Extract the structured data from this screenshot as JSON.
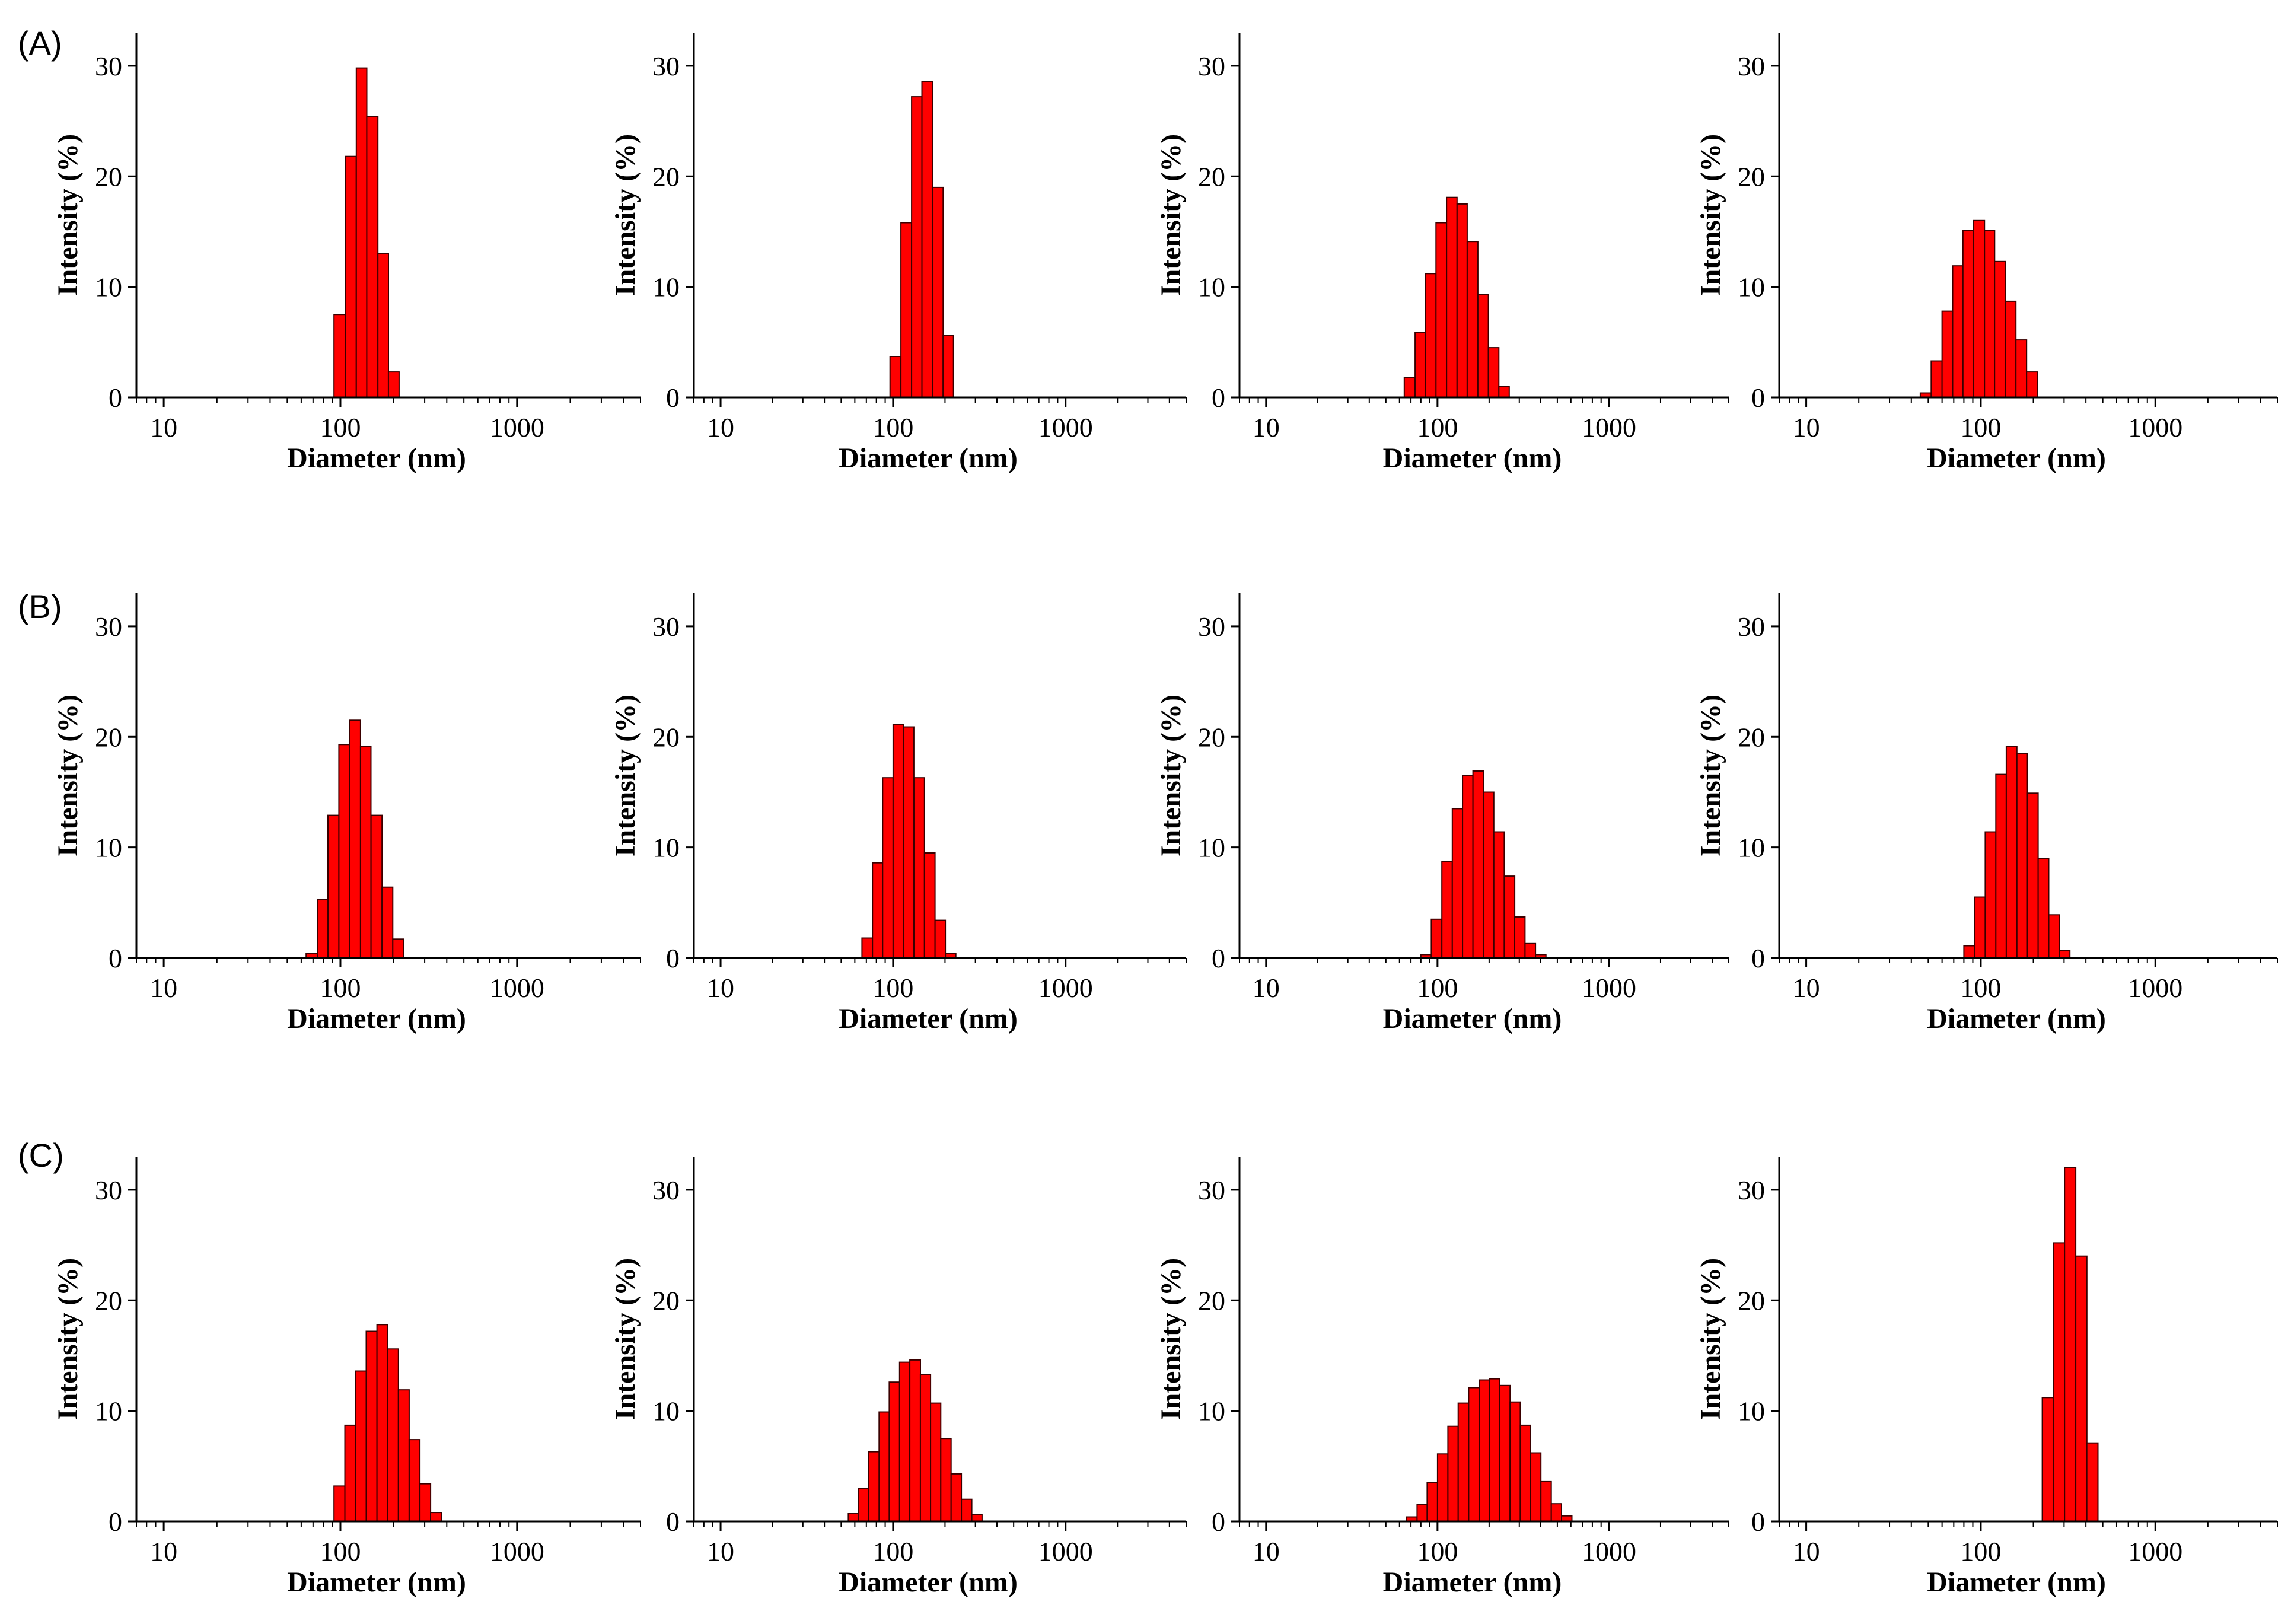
{
  "row_labels": [
    "(A)",
    "(B)",
    "(C)"
  ],
  "colors": {
    "bar_fill": "#ff0000",
    "bar_stroke": "#3a0000",
    "axis": "#000000"
  },
  "chart_data": [
    {
      "type": "bar",
      "row": "(A)",
      "xlabel": "Diameter (nm)",
      "ylabel": "Intensity (%)",
      "xscale": "log",
      "xlim": [
        7,
        5000
      ],
      "ylim": [
        0,
        33
      ],
      "xticks": [
        10,
        100,
        1000
      ],
      "yticks": [
        0,
        10,
        20,
        30
      ],
      "bins": [
        [
          92,
          107,
          7.5
        ],
        [
          107,
          123,
          21.8
        ],
        [
          123,
          141,
          29.8
        ],
        [
          141,
          163,
          25.4
        ],
        [
          163,
          187,
          13.0
        ],
        [
          187,
          215,
          2.3
        ]
      ]
    },
    {
      "type": "bar",
      "row": "(A)",
      "xlabel": "Diameter (nm)",
      "ylabel": "Intensity (%)",
      "xscale": "log",
      "xlim": [
        7,
        5000
      ],
      "ylim": [
        0,
        33
      ],
      "xticks": [
        10,
        100,
        1000
      ],
      "yticks": [
        0,
        10,
        20,
        30
      ],
      "bins": [
        [
          96,
          111,
          3.7
        ],
        [
          111,
          128,
          15.8
        ],
        [
          128,
          147,
          27.2
        ],
        [
          147,
          169,
          28.6
        ],
        [
          169,
          195,
          19.0
        ],
        [
          195,
          224,
          5.6
        ]
      ]
    },
    {
      "type": "bar",
      "row": "(A)",
      "xlabel": "Diameter (nm)",
      "ylabel": "Intensity (%)",
      "xscale": "log",
      "xlim": [
        7,
        5000
      ],
      "ylim": [
        0,
        33
      ],
      "xticks": [
        10,
        100,
        1000
      ],
      "yticks": [
        0,
        10,
        20,
        30
      ],
      "bins": [
        [
          64,
          74,
          1.8
        ],
        [
          74,
          85,
          5.9
        ],
        [
          85,
          98,
          11.2
        ],
        [
          98,
          113,
          15.8
        ],
        [
          113,
          130,
          18.1
        ],
        [
          130,
          149,
          17.5
        ],
        [
          149,
          172,
          14.1
        ],
        [
          172,
          198,
          9.3
        ],
        [
          198,
          228,
          4.5
        ],
        [
          228,
          262,
          1.0
        ]
      ]
    },
    {
      "type": "bar",
      "row": "(A)",
      "xlabel": "Diameter (nm)",
      "ylabel": "Intensity (%)",
      "xscale": "log",
      "xlim": [
        7,
        5000
      ],
      "ylim": [
        0,
        33
      ],
      "xticks": [
        10,
        100,
        1000
      ],
      "yticks": [
        0,
        10,
        20,
        30
      ],
      "bins": [
        [
          45,
          52,
          0.4
        ],
        [
          52,
          60,
          3.3
        ],
        [
          60,
          69,
          7.8
        ],
        [
          69,
          79,
          11.9
        ],
        [
          79,
          91,
          15.1
        ],
        [
          91,
          105,
          16.0
        ],
        [
          105,
          120,
          15.1
        ],
        [
          120,
          138,
          12.3
        ],
        [
          138,
          159,
          8.7
        ],
        [
          159,
          183,
          5.2
        ],
        [
          183,
          211,
          2.3
        ]
      ]
    },
    {
      "type": "bar",
      "row": "(B)",
      "xlabel": "Diameter (nm)",
      "ylabel": "Intensity (%)",
      "xscale": "log",
      "xlim": [
        7,
        5000
      ],
      "ylim": [
        0,
        33
      ],
      "xticks": [
        10,
        100,
        1000
      ],
      "yticks": [
        0,
        10,
        20,
        30
      ],
      "bins": [
        [
          64,
          74,
          0.4
        ],
        [
          74,
          85,
          5.3
        ],
        [
          85,
          98,
          12.9
        ],
        [
          98,
          113,
          19.3
        ],
        [
          113,
          130,
          21.5
        ],
        [
          130,
          149,
          19.1
        ],
        [
          149,
          172,
          12.9
        ],
        [
          172,
          198,
          6.4
        ],
        [
          198,
          228,
          1.7
        ]
      ]
    },
    {
      "type": "bar",
      "row": "(B)",
      "xlabel": "Diameter (nm)",
      "ylabel": "Intensity (%)",
      "xscale": "log",
      "xlim": [
        7,
        5000
      ],
      "ylim": [
        0,
        33
      ],
      "xticks": [
        10,
        100,
        1000
      ],
      "yticks": [
        0,
        10,
        20,
        30
      ],
      "bins": [
        [
          66,
          76,
          1.8
        ],
        [
          76,
          87,
          8.6
        ],
        [
          87,
          100,
          16.3
        ],
        [
          100,
          115,
          21.1
        ],
        [
          115,
          132,
          20.9
        ],
        [
          132,
          152,
          16.3
        ],
        [
          152,
          175,
          9.5
        ],
        [
          175,
          201,
          3.4
        ],
        [
          201,
          231,
          0.4
        ]
      ]
    },
    {
      "type": "bar",
      "row": "(B)",
      "xlabel": "Diameter (nm)",
      "ylabel": "Intensity (%)",
      "xscale": "log",
      "xlim": [
        7,
        5000
      ],
      "ylim": [
        0,
        33
      ],
      "xticks": [
        10,
        100,
        1000
      ],
      "yticks": [
        0,
        10,
        20,
        30
      ],
      "bins": [
        [
          80,
          92,
          0.3
        ],
        [
          92,
          106,
          3.5
        ],
        [
          106,
          122,
          8.7
        ],
        [
          122,
          140,
          13.5
        ],
        [
          140,
          161,
          16.5
        ],
        [
          161,
          185,
          16.9
        ],
        [
          185,
          213,
          15.0
        ],
        [
          213,
          245,
          11.4
        ],
        [
          245,
          282,
          7.4
        ],
        [
          282,
          324,
          3.7
        ],
        [
          324,
          373,
          1.3
        ],
        [
          373,
          429,
          0.3
        ]
      ]
    },
    {
      "type": "bar",
      "row": "(B)",
      "xlabel": "Diameter (nm)",
      "ylabel": "Intensity (%)",
      "xscale": "log",
      "xlim": [
        7,
        5000
      ],
      "ylim": [
        0,
        33
      ],
      "xticks": [
        10,
        100,
        1000
      ],
      "yticks": [
        0,
        10,
        20,
        30
      ],
      "bins": [
        [
          80,
          92,
          1.1
        ],
        [
          92,
          106,
          5.5
        ],
        [
          106,
          122,
          11.4
        ],
        [
          122,
          140,
          16.6
        ],
        [
          140,
          161,
          19.1
        ],
        [
          161,
          185,
          18.5
        ],
        [
          185,
          213,
          14.9
        ],
        [
          213,
          245,
          9.0
        ],
        [
          245,
          282,
          3.9
        ],
        [
          282,
          324,
          0.7
        ]
      ]
    },
    {
      "type": "bar",
      "row": "(C)",
      "xlabel": "Diameter (nm)",
      "ylabel": "Intensity (%)",
      "xscale": "log",
      "xlim": [
        7,
        5000
      ],
      "ylim": [
        0,
        33
      ],
      "xticks": [
        10,
        100,
        1000
      ],
      "yticks": [
        0,
        10,
        20,
        30
      ],
      "bins": [
        [
          92,
          106,
          3.2
        ],
        [
          106,
          122,
          8.7
        ],
        [
          122,
          140,
          13.6
        ],
        [
          140,
          161,
          17.2
        ],
        [
          161,
          185,
          17.8
        ],
        [
          185,
          213,
          15.6
        ],
        [
          213,
          245,
          11.9
        ],
        [
          245,
          282,
          7.4
        ],
        [
          282,
          324,
          3.4
        ],
        [
          324,
          373,
          0.8
        ]
      ]
    },
    {
      "type": "bar",
      "row": "(C)",
      "xlabel": "Diameter (nm)",
      "ylabel": "Intensity (%)",
      "xscale": "log",
      "xlim": [
        7,
        5000
      ],
      "ylim": [
        0,
        33
      ],
      "xticks": [
        10,
        100,
        1000
      ],
      "yticks": [
        0,
        10,
        20,
        30
      ],
      "bins": [
        [
          55,
          63,
          0.7
        ],
        [
          63,
          72,
          3.0
        ],
        [
          72,
          83,
          6.3
        ],
        [
          83,
          95,
          9.9
        ],
        [
          95,
          109,
          12.6
        ],
        [
          109,
          125,
          14.4
        ],
        [
          125,
          144,
          14.6
        ],
        [
          144,
          165,
          13.3
        ],
        [
          165,
          189,
          10.7
        ],
        [
          189,
          217,
          7.5
        ],
        [
          217,
          249,
          4.3
        ],
        [
          249,
          286,
          2.0
        ],
        [
          286,
          328,
          0.6
        ]
      ]
    },
    {
      "type": "bar",
      "row": "(C)",
      "xlabel": "Diameter (nm)",
      "ylabel": "Intensity (%)",
      "xscale": "log",
      "xlim": [
        7,
        5000
      ],
      "ylim": [
        0,
        33
      ],
      "xticks": [
        10,
        100,
        1000
      ],
      "yticks": [
        0,
        10,
        20,
        30
      ],
      "bins": [
        [
          66,
          76,
          0.4
        ],
        [
          76,
          87,
          1.5
        ],
        [
          87,
          100,
          3.5
        ],
        [
          100,
          115,
          6.1
        ],
        [
          115,
          132,
          8.6
        ],
        [
          132,
          152,
          10.7
        ],
        [
          152,
          175,
          12.1
        ],
        [
          175,
          201,
          12.8
        ],
        [
          201,
          231,
          12.9
        ],
        [
          231,
          265,
          12.3
        ],
        [
          265,
          304,
          10.8
        ],
        [
          304,
          349,
          8.7
        ],
        [
          349,
          401,
          6.2
        ],
        [
          401,
          461,
          3.6
        ],
        [
          461,
          529,
          1.6
        ],
        [
          529,
          608,
          0.5
        ]
      ]
    },
    {
      "type": "bar",
      "row": "(C)",
      "xlabel": "Diameter (nm)",
      "ylabel": "Intensity (%)",
      "xscale": "log",
      "xlim": [
        7,
        5000
      ],
      "ylim": [
        0,
        33
      ],
      "xticks": [
        10,
        100,
        1000
      ],
      "yticks": [
        0,
        10,
        20,
        30
      ],
      "bins": [
        [
          225,
          261,
          11.2
        ],
        [
          261,
          302,
          25.2
        ],
        [
          302,
          350,
          32.0
        ],
        [
          350,
          405,
          24.0
        ],
        [
          405,
          469,
          7.1
        ]
      ]
    }
  ]
}
